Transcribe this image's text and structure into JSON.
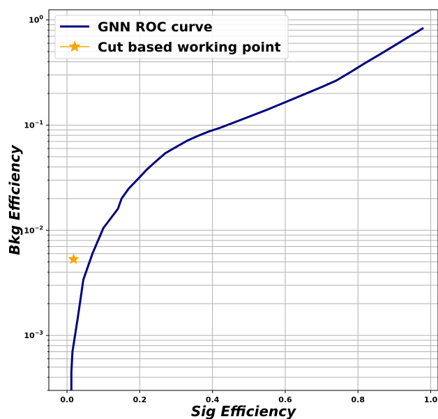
{
  "chart_data": {
    "type": "line",
    "xlabel": "Sig Efficiency",
    "ylabel": "Bkg Efficiency",
    "yscale": "log",
    "xlim": [
      -0.05,
      1.02
    ],
    "ylim": [
      0.0003,
      1.25
    ],
    "grid": true,
    "legend_position": "upper-left",
    "x_ticks": [
      0.0,
      0.2,
      0.4,
      0.6,
      0.8,
      1.0
    ],
    "x_tick_labels": [
      "0.0",
      "0.2",
      "0.4",
      "0.6",
      "0.8",
      "1.0"
    ],
    "y_ticks": [
      0.001,
      0.01,
      0.1,
      1
    ],
    "y_tick_labels": [
      {
        "base": "10",
        "exp": "−3"
      },
      {
        "base": "10",
        "exp": "−2"
      },
      {
        "base": "10",
        "exp": "−1"
      },
      {
        "base": "10",
        "exp": "0"
      }
    ],
    "series": [
      {
        "name": "GNN ROC curve",
        "color": "#00007f",
        "x": [
          0.012,
          0.012,
          0.015,
          0.03,
          0.045,
          0.07,
          0.1,
          0.14,
          0.15,
          0.17,
          0.2,
          0.22,
          0.25,
          0.27,
          0.3,
          0.33,
          0.36,
          0.39,
          0.42,
          0.45,
          0.5,
          0.55,
          0.6,
          0.65,
          0.7,
          0.74,
          0.78,
          0.82,
          0.86,
          0.9,
          0.93,
          0.96,
          0.98
        ],
        "y": [
          0.0003,
          0.00045,
          0.0007,
          0.0015,
          0.0034,
          0.006,
          0.0105,
          0.016,
          0.02,
          0.025,
          0.032,
          0.038,
          0.047,
          0.054,
          0.062,
          0.071,
          0.079,
          0.087,
          0.094,
          0.103,
          0.12,
          0.14,
          0.165,
          0.195,
          0.23,
          0.265,
          0.32,
          0.39,
          0.47,
          0.57,
          0.66,
          0.76,
          0.84
        ]
      },
      {
        "name": "Cut based working point",
        "color": "#ffa500",
        "marker": "star",
        "x": [
          0.018
        ],
        "y": [
          0.0053
        ]
      }
    ]
  }
}
